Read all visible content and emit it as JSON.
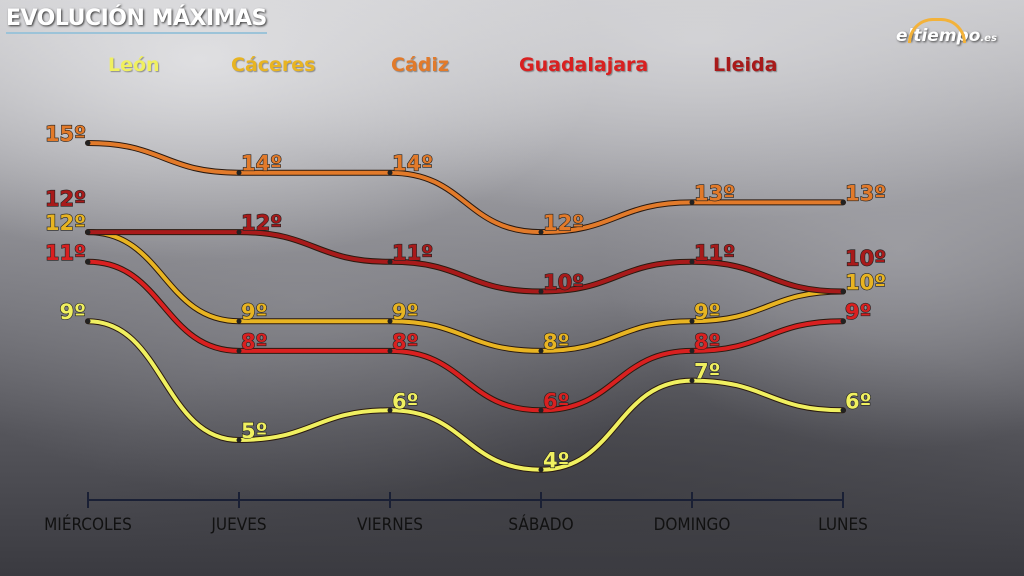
{
  "header": {
    "title": "EVOLUCIÓN MÁXIMAS",
    "logo_text": "eltiempo",
    "logo_suffix": ".es"
  },
  "chart_data": {
    "type": "line",
    "title": "EVOLUCIÓN MÁXIMAS",
    "categories": [
      "MIÉRCOLES",
      "JUEVES",
      "VIERNES",
      "SÁBADO",
      "DOMINGO",
      "LUNES"
    ],
    "unit": "º",
    "ylim": [
      4,
      15
    ],
    "grid": false,
    "legend_placement": "top",
    "series": [
      {
        "name": "León",
        "color": "#f0f060",
        "values": [
          9,
          5,
          6,
          4,
          7,
          6
        ]
      },
      {
        "name": "Cáceres",
        "color": "#e8b422",
        "values": [
          12,
          9,
          9,
          8,
          9,
          10
        ]
      },
      {
        "name": "Cádiz",
        "color": "#e27a2a",
        "values": [
          15,
          14,
          14,
          12,
          13,
          13
        ]
      },
      {
        "name": "Guadalajara",
        "color": "#d92020",
        "values": [
          11,
          8,
          8,
          6,
          8,
          9
        ]
      },
      {
        "name": "Lleida",
        "color": "#a81a1a",
        "values": [
          12,
          12,
          11,
          10,
          11,
          10
        ]
      }
    ]
  }
}
